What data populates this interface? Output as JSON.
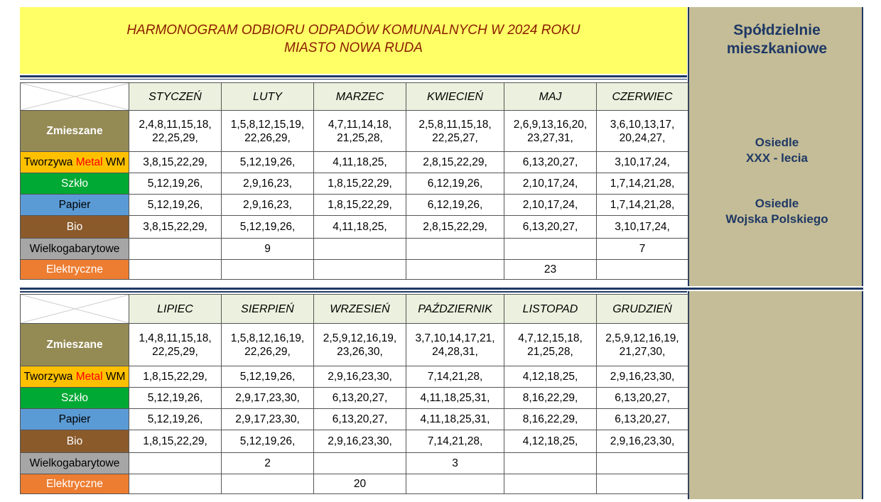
{
  "title": {
    "line1": "HARMONOGRAM ODBIORU  ODPADÓW  KOMUNALNYCH W 2024 ROKU",
    "line2": "MIASTO NOWA RUDA"
  },
  "sidebar": {
    "heading_line1": "Spółdzielnie",
    "heading_line2": "mieszkaniowe",
    "estate1_line1": "Osiedle",
    "estate1_line2": "XXX - lecia",
    "estate2_line1": "Osiedle",
    "estate2_line2": "Wojska Polskiego"
  },
  "categories": {
    "zm": "Zmieszane",
    "tw_a": "Tworzywa ",
    "tw_b": "Metal",
    "tw_c": " WM",
    "sz": "Szkło",
    "pa": "Papier",
    "bi": "Bio",
    "wk": "Wielkogabarytowe",
    "el": "Elektryczne"
  },
  "colors": {
    "title_bg": "#ffff66",
    "title_text": "#8a1c00",
    "header_bg": "#ebf1de",
    "sidebar_bg": "#c4bd97",
    "sidebar_text": "#1f3864",
    "zmieszane": "#948a54",
    "tworzywa": "#ffc000",
    "szklo": "#00a933",
    "papier": "#5b9bd5",
    "bio": "#8b5a2b",
    "wielkogabarytowe": "#a6a6a6",
    "elektryczne": "#ed7d31"
  },
  "h1": {
    "months": [
      "STYCZEŃ",
      "LUTY",
      "MARZEC",
      "KWIECIEŃ",
      "MAJ",
      "CZERWIEC"
    ],
    "zm1": [
      "2,4,8,11,15,18,",
      "1,5,8,12,15,19,",
      "4,7,11,14,18,",
      "2,5,8,11,15,18,",
      "2,6,9,13,16,20,",
      "3,6,10,13,17,"
    ],
    "zm2": [
      "22,25,29,",
      "22,26,29,",
      "21,25,28,",
      "22,25,27,",
      "23,27,31,",
      "20,24,27,"
    ],
    "tw": [
      "3,8,15,22,29,",
      "5,12,19,26,",
      "4,11,18,25,",
      "2,8,15,22,29,",
      "6,13,20,27,",
      "3,10,17,24,"
    ],
    "sz": [
      "5,12,19,26,",
      "2,9,16,23,",
      "1,8,15,22,29,",
      "6,12,19,26,",
      "2,10,17,24,",
      "1,7,14,21,28,"
    ],
    "pa": [
      "5,12,19,26,",
      "2,9,16,23,",
      "1,8,15,22,29,",
      "6,12,19,26,",
      "2,10,17,24,",
      "1,7,14,21,28,"
    ],
    "bi": [
      "3,8,15,22,29,",
      "5,12,19,26,",
      "4,11,18,25,",
      "2,8,15,22,29,",
      "6,13,20,27,",
      "3,10,17,24,"
    ],
    "wk": [
      "",
      "9",
      "",
      "",
      "",
      "7"
    ],
    "el": [
      "",
      "",
      "",
      "",
      "23",
      ""
    ]
  },
  "h2": {
    "months": [
      "LIPIEC",
      "SIERPIEŃ",
      "WRZESIEŃ",
      "PAŹDZIERNIK",
      "LISTOPAD",
      "GRUDZIEŃ"
    ],
    "zm1": [
      "1,4,8,11,15,18,",
      "1,5,8,12,16,19,",
      "2,5,9,12,16,19,",
      "3,7,10,14,17,21,",
      "4,7,12,15,18,",
      "2,5,9,12,16,19,"
    ],
    "zm2": [
      "22,25,29,",
      "22,26,29,",
      "23,26,30,",
      "24,28,31,",
      "21,25,28,",
      "21,27,30,"
    ],
    "tw": [
      "1,8,15,22,29,",
      "5,12,19,26,",
      "2,9,16,23,30,",
      "7,14,21,28,",
      "4,12,18,25,",
      "2,9,16,23,30,"
    ],
    "sz": [
      "5,12,19,26,",
      "2,9,17,23,30,",
      "6,13,20,27,",
      "4,11,18,25,31,",
      "8,16,22,29,",
      "6,13,20,27,"
    ],
    "pa": [
      "5,12,19,26,",
      "2,9,17,23,30,",
      "6,13,20,27,",
      "4,11,18,25,31,",
      "8,16,22,29,",
      "6,13,20,27,"
    ],
    "bi": [
      "1,8,15,22,29,",
      "5,12,19,26,",
      "2,9,16,23,30,",
      "7,14,21,28,",
      "4,12,18,25,",
      "2,9,16,23,30,"
    ],
    "wk": [
      "",
      "2",
      "",
      "3",
      "",
      ""
    ],
    "el": [
      "",
      "",
      "20",
      "",
      "",
      ""
    ]
  }
}
